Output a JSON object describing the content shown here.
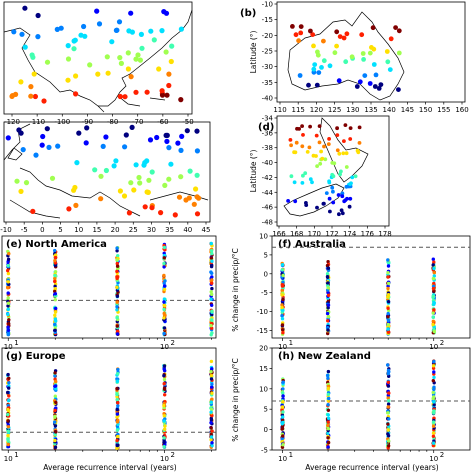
{
  "colors": {
    "scale": [
      "#00007f",
      "#0000ff",
      "#0080ff",
      "#00e0ff",
      "#40ffb0",
      "#a0ff50",
      "#ffe000",
      "#ff8000",
      "#ff2000",
      "#800000"
    ],
    "reference_line": "#555555"
  },
  "maps": [
    {
      "id": "a",
      "label": "",
      "xticks": [
        "-120",
        "-110",
        "-100",
        "-90",
        "-80",
        "-70",
        "-60",
        "-50"
      ],
      "yticks": [],
      "ylabel": ""
    },
    {
      "id": "b",
      "label": "(b)",
      "xticks": [
        "110",
        "115",
        "120",
        "125",
        "130",
        "135",
        "140",
        "145",
        "150",
        "155",
        "160"
      ],
      "yticks": [
        "-10",
        "-15",
        "-20",
        "-25",
        "-30",
        "-35",
        "-40"
      ],
      "ylabel": "Latitude (°)"
    },
    {
      "id": "c",
      "label": "",
      "xticks": [
        "-10",
        "-5",
        "0",
        "5",
        "10",
        "15",
        "20",
        "25",
        "30",
        "35",
        "40",
        "45"
      ],
      "yticks": [],
      "ylabel": ""
    },
    {
      "id": "d",
      "label": "(d)",
      "xticks": [
        "166",
        "168",
        "170",
        "172",
        "174",
        "176",
        "178"
      ],
      "yticks": [
        "-34",
        "-36",
        "-38",
        "-40",
        "-42",
        "-44",
        "-46",
        "-48"
      ],
      "ylabel": "Latitude (°)"
    }
  ],
  "chart_data": [
    {
      "id": "e",
      "type": "scatter",
      "title": "(e) North America",
      "x": [
        10,
        20,
        50,
        100,
        200
      ],
      "reference_line": -1.0,
      "ylim": [
        -4.5,
        5
      ],
      "yticks": [],
      "xlabel": "",
      "ylabel": "",
      "x_scale": "log"
    },
    {
      "id": "f",
      "type": "scatter",
      "title": "(f) Australia",
      "x": [
        10,
        20,
        50,
        100
      ],
      "reference_line": 7,
      "ylim": [
        -17,
        10
      ],
      "yticks": [
        "10",
        "5",
        "0",
        "-5",
        "-10",
        "-15"
      ],
      "xlabel": "",
      "ylabel": "% change in precip/°C",
      "x_scale": "log"
    },
    {
      "id": "g",
      "type": "scatter",
      "title": "(g) Europe",
      "x": [
        10,
        20,
        50,
        100,
        200
      ],
      "reference_line": -1.5,
      "ylim": [
        -3.5,
        8
      ],
      "yticks": [],
      "xlabel": "Average recurrence interval (years)",
      "ylabel": "",
      "x_scale": "log",
      "xticks": [
        "10",
        "10"
      ]
    },
    {
      "id": "h",
      "type": "scatter",
      "title": "(h) New Zealand",
      "x": [
        10,
        20,
        50,
        100
      ],
      "reference_line": 7,
      "ylim": [
        -5,
        20
      ],
      "yticks": [
        "20",
        "15",
        "10",
        "5",
        "0",
        "-5"
      ],
      "xlabel": "Average recurrence interval (years)",
      "ylabel": "% change in precip/°C",
      "x_scale": "log"
    }
  ]
}
